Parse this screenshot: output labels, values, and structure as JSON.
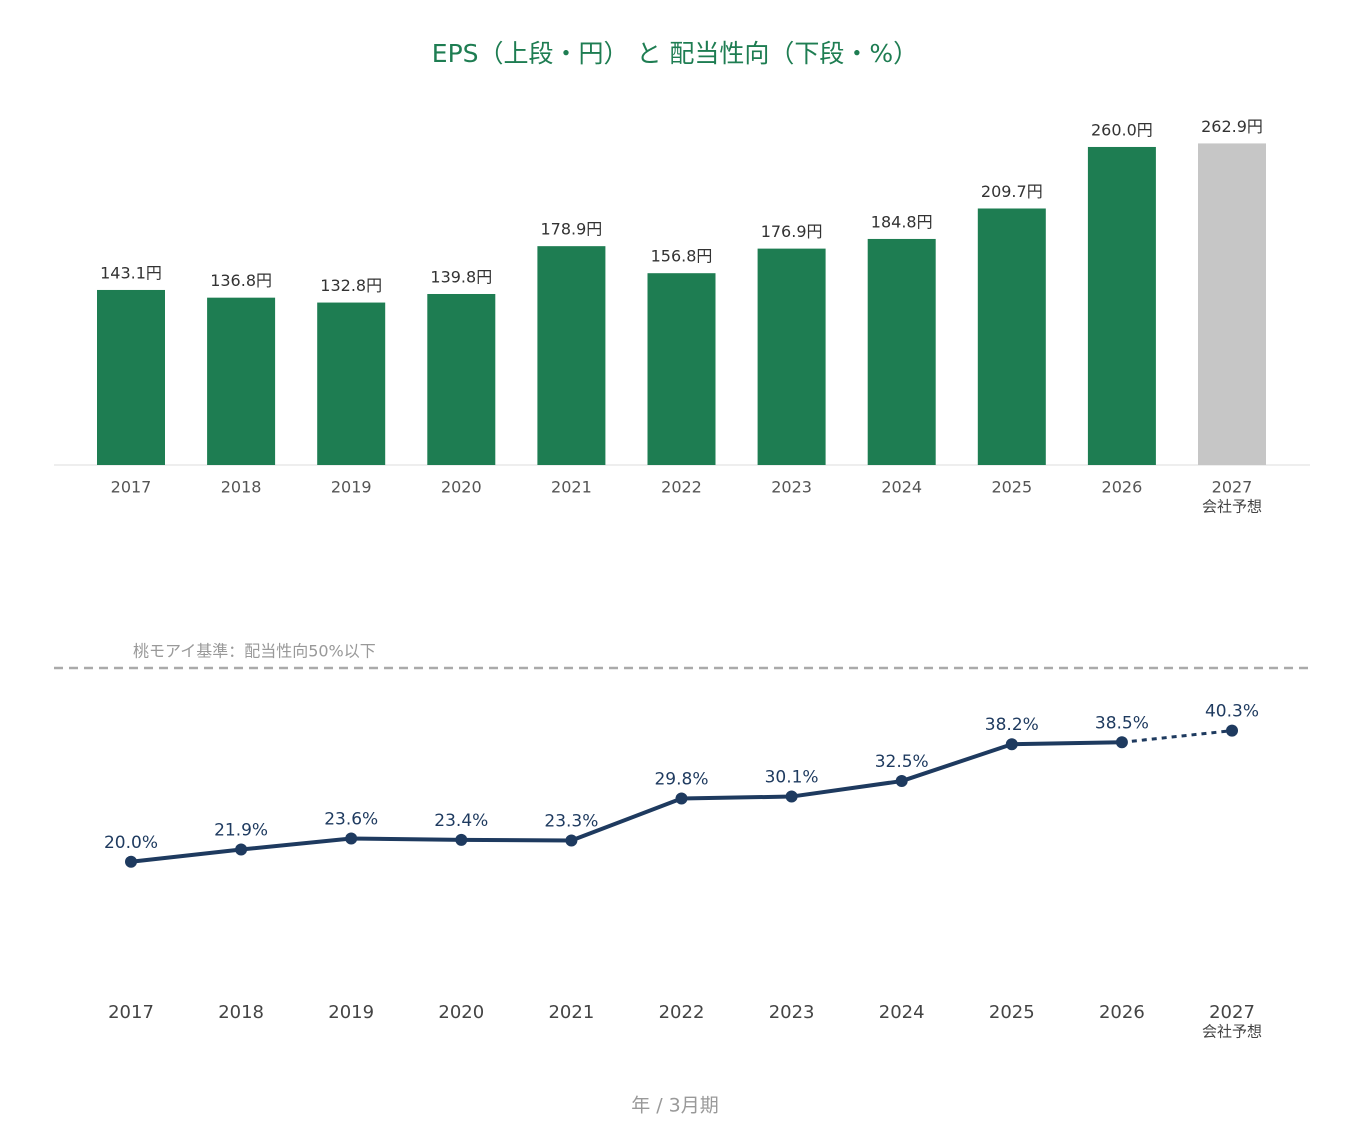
{
  "chart_data": [
    {
      "type": "bar",
      "title": "EPS（上段・円） と 配当性向（下段・%）",
      "categories": [
        "2017",
        "2018",
        "2019",
        "2020",
        "2021",
        "2022",
        "2023",
        "2024",
        "2025",
        "2026",
        "2027"
      ],
      "category_notes": [
        null,
        null,
        null,
        null,
        null,
        null,
        null,
        null,
        null,
        null,
        "会社予想"
      ],
      "values": [
        143.1,
        136.8,
        132.8,
        139.8,
        178.9,
        156.8,
        176.9,
        184.8,
        209.7,
        260.0,
        262.9
      ],
      "value_labels": [
        "143.1円",
        "136.8円",
        "132.8円",
        "139.8円",
        "178.9円",
        "156.8円",
        "176.9円",
        "184.8円",
        "209.7円",
        "260.0円",
        "262.9円"
      ],
      "color": "#1e7d52",
      "forecast_color": "#c6c6c6",
      "ylim": [
        0,
        280
      ]
    },
    {
      "type": "line",
      "categories": [
        "2017",
        "2018",
        "2019",
        "2020",
        "2021",
        "2022",
        "2023",
        "2024",
        "2025",
        "2026",
        "2027"
      ],
      "category_notes": [
        null,
        null,
        null,
        null,
        null,
        null,
        null,
        null,
        null,
        null,
        "会社予想"
      ],
      "values": [
        20.0,
        21.9,
        23.6,
        23.4,
        23.3,
        29.8,
        30.1,
        32.5,
        38.2,
        38.5,
        40.3
      ],
      "value_labels": [
        "20.0%",
        "21.9%",
        "23.6%",
        "23.4%",
        "23.3%",
        "29.8%",
        "30.1%",
        "32.5%",
        "38.2%",
        "38.5%",
        "40.3%"
      ],
      "color": "#1e3a5f",
      "reference_line": {
        "value": 50,
        "label": "桃モアイ基準：配当性向50%以下"
      },
      "ylim": [
        0,
        50
      ],
      "xlabel": "年 / 3月期"
    }
  ]
}
